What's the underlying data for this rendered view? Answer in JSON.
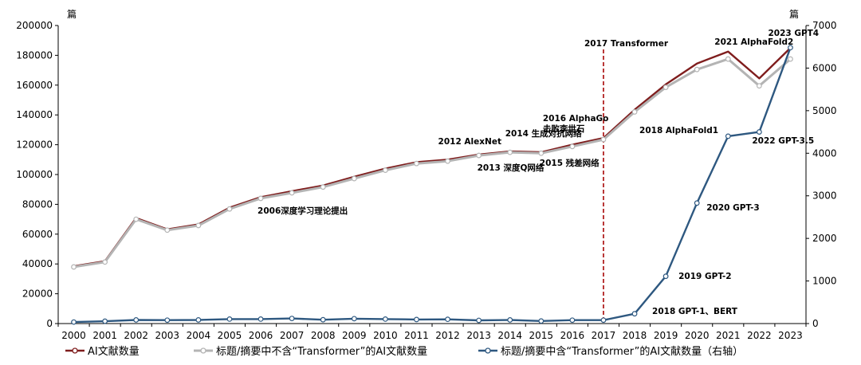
{
  "chart_data": {
    "type": "line",
    "x": [
      "2000",
      "2001",
      "2002",
      "2003",
      "2004",
      "2005",
      "2006",
      "2007",
      "2008",
      "2009",
      "2010",
      "2011",
      "2012",
      "2013",
      "2014",
      "2015",
      "2016",
      "2017",
      "2018",
      "2019",
      "2020",
      "2021",
      "2022",
      "2023"
    ],
    "left_unit": "篇",
    "right_unit": "篇",
    "ylim_left": [
      0,
      200000
    ],
    "yticks_left": [
      "0",
      "20000",
      "40000",
      "60000",
      "80000",
      "100000",
      "120000",
      "140000",
      "160000",
      "180000",
      "200000"
    ],
    "ylim_right": [
      0,
      7000
    ],
    "yticks_right": [
      "0",
      "1000",
      "2000",
      "3000",
      "4000",
      "5000",
      "6000",
      "7000"
    ],
    "series": [
      {
        "name": "AI文献数量",
        "axis": "left",
        "color": "#7f1d1d",
        "values": [
          38500,
          41800,
          70800,
          63200,
          66500,
          77800,
          84800,
          88800,
          92600,
          98500,
          104000,
          108300,
          110000,
          113400,
          115500,
          115000,
          120000,
          124500,
          143500,
          160500,
          174500,
          182500,
          164500,
          185000
        ]
      },
      {
        "name": "标题/摘要中不含“Transformer”的AI文献数量",
        "axis": "left",
        "color": "#b4b4b4",
        "values": [
          38000,
          41300,
          70000,
          62700,
          65800,
          76900,
          84000,
          87700,
          91600,
          97300,
          102900,
          107400,
          109000,
          112800,
          114900,
          114300,
          118800,
          123500,
          142000,
          158500,
          170500,
          177500,
          159500,
          177500
        ]
      },
      {
        "name": "标题/摘要中含“Transformer”的AI文献数量（右轴）",
        "axis": "right",
        "color": "#2e5880",
        "values": [
          35,
          55,
          85,
          80,
          85,
          105,
          105,
          120,
          90,
          115,
          105,
          95,
          100,
          75,
          85,
          60,
          80,
          80,
          230,
          1110,
          2830,
          4400,
          4500,
          6480
        ]
      }
    ],
    "vline": {
      "x": "2017",
      "label": "2017 Transformer",
      "color": "#b22222"
    },
    "annotations": [
      {
        "x": "2006",
        "text": "2006深度学习理论提出"
      },
      {
        "x": "2012",
        "text": "2012 AlexNet"
      },
      {
        "x": "2013",
        "text": "2013 深度Q网络"
      },
      {
        "x": "2014",
        "text": "2014 生成对抗网络"
      },
      {
        "x": "2015",
        "text": "2015 残差网络"
      },
      {
        "x": "2016",
        "text": "2016 AlphaGo"
      },
      {
        "x": "2016",
        "text": "击败李世石"
      },
      {
        "x": "2018",
        "text": "2018 AlphaFold1"
      },
      {
        "x": "2018",
        "text": "2018 GPT-1、BERT"
      },
      {
        "x": "2019",
        "text": "2019 GPT-2"
      },
      {
        "x": "2020",
        "text": "2020 GPT-3"
      },
      {
        "x": "2021",
        "text": "2021 AlphaFold2"
      },
      {
        "x": "2022",
        "text": "2022 GPT-3.5"
      },
      {
        "x": "2023",
        "text": "2023 GPT4"
      }
    ],
    "legend_position": "bottom",
    "grid": false
  }
}
